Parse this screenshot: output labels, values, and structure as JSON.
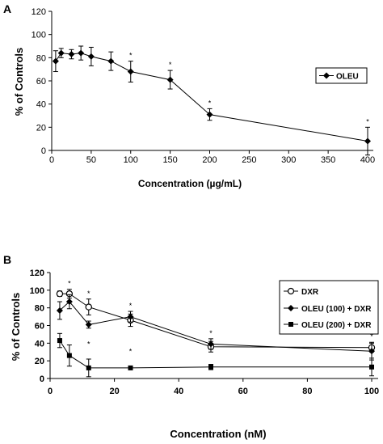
{
  "chart_data": [
    {
      "panel_label": "A",
      "type": "line",
      "xlabel": "Concentration (µg/mL)",
      "ylabel": "% of Controls",
      "xlim": [
        0,
        400
      ],
      "ylim": [
        0,
        120
      ],
      "x_ticks": [
        0,
        50,
        100,
        150,
        200,
        250,
        300,
        350,
        400
      ],
      "y_ticks": [
        0,
        20,
        40,
        60,
        80,
        100,
        120
      ],
      "legend_position": "top-right",
      "series": [
        {
          "name": "OLEU",
          "marker": "filled-diamond",
          "x": [
            5,
            12,
            25,
            37,
            50,
            75,
            100,
            150,
            200,
            400
          ],
          "values": [
            77,
            84,
            83,
            84,
            81,
            77,
            68,
            61,
            31,
            8
          ],
          "error": [
            9,
            4,
            4,
            6,
            8,
            8,
            9,
            8,
            5,
            12
          ],
          "significant": [
            false,
            false,
            false,
            false,
            false,
            false,
            true,
            true,
            true,
            true
          ]
        }
      ],
      "annotations": [
        "*",
        "*",
        "*",
        "*"
      ]
    },
    {
      "panel_label": "B",
      "type": "line",
      "xlabel": "Concentration (nM)",
      "ylabel": "% of Controls",
      "xlim": [
        0,
        100
      ],
      "ylim": [
        0,
        120
      ],
      "x_ticks": [
        0,
        20,
        40,
        60,
        80,
        100
      ],
      "y_ticks": [
        0,
        20,
        40,
        60,
        80,
        100,
        120
      ],
      "legend_position": "right",
      "series": [
        {
          "name": "DXR",
          "marker": "open-circle",
          "x": [
            3,
            6,
            12,
            25,
            50,
            100
          ],
          "values": [
            96,
            96,
            81,
            66,
            36,
            35
          ],
          "error": [
            3,
            5,
            9,
            7,
            6,
            5
          ]
        },
        {
          "name": "OLEU (100) + DXR",
          "marker": "filled-diamond",
          "x": [
            3,
            6,
            12,
            25,
            50,
            100
          ],
          "values": [
            77,
            87,
            61,
            70,
            39,
            31
          ],
          "error": [
            10,
            8,
            4,
            6,
            6,
            10
          ]
        },
        {
          "name": "OLEU (200) + DXR",
          "marker": "filled-square",
          "x": [
            3,
            6,
            12,
            25,
            50,
            100
          ],
          "values": [
            43,
            26,
            12,
            12,
            13,
            13
          ],
          "error": [
            8,
            12,
            10,
            2,
            3,
            10
          ]
        }
      ],
      "annotations": [
        "*",
        "*",
        "*",
        "*",
        "*",
        "*",
        "*"
      ]
    }
  ]
}
